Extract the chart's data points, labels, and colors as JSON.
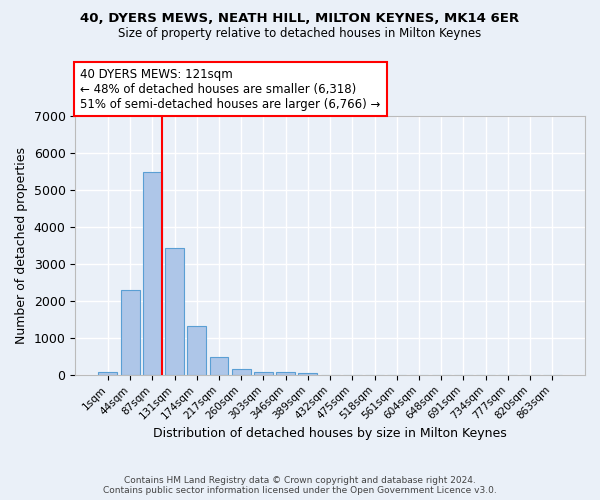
{
  "title": "40, DYERS MEWS, NEATH HILL, MILTON KEYNES, MK14 6ER",
  "subtitle": "Size of property relative to detached houses in Milton Keynes",
  "xlabel": "Distribution of detached houses by size in Milton Keynes",
  "ylabel": "Number of detached properties",
  "footer_line1": "Contains HM Land Registry data © Crown copyright and database right 2024.",
  "footer_line2": "Contains public sector information licensed under the Open Government Licence v3.0.",
  "bar_labels": [
    "1sqm",
    "44sqm",
    "87sqm",
    "131sqm",
    "174sqm",
    "217sqm",
    "260sqm",
    "303sqm",
    "346sqm",
    "389sqm",
    "432sqm",
    "475sqm",
    "518sqm",
    "561sqm",
    "604sqm",
    "648sqm",
    "691sqm",
    "734sqm",
    "777sqm",
    "820sqm",
    "863sqm"
  ],
  "bar_values": [
    75,
    2280,
    5490,
    3440,
    1310,
    470,
    160,
    90,
    65,
    40,
    0,
    0,
    0,
    0,
    0,
    0,
    0,
    0,
    0,
    0,
    0
  ],
  "bar_color": "#aec6e8",
  "bar_edge_color": "#5a9fd4",
  "background_color": "#eaf0f8",
  "grid_color": "#ffffff",
  "vline_x_index": 2,
  "vline_color": "red",
  "annotation_text": "40 DYERS MEWS: 121sqm\n← 48% of detached houses are smaller (6,318)\n51% of semi-detached houses are larger (6,766) →",
  "annotation_box_color": "white",
  "annotation_box_edge": "red",
  "ylim": [
    0,
    7000
  ],
  "yticks": [
    0,
    1000,
    2000,
    3000,
    4000,
    5000,
    6000,
    7000
  ]
}
